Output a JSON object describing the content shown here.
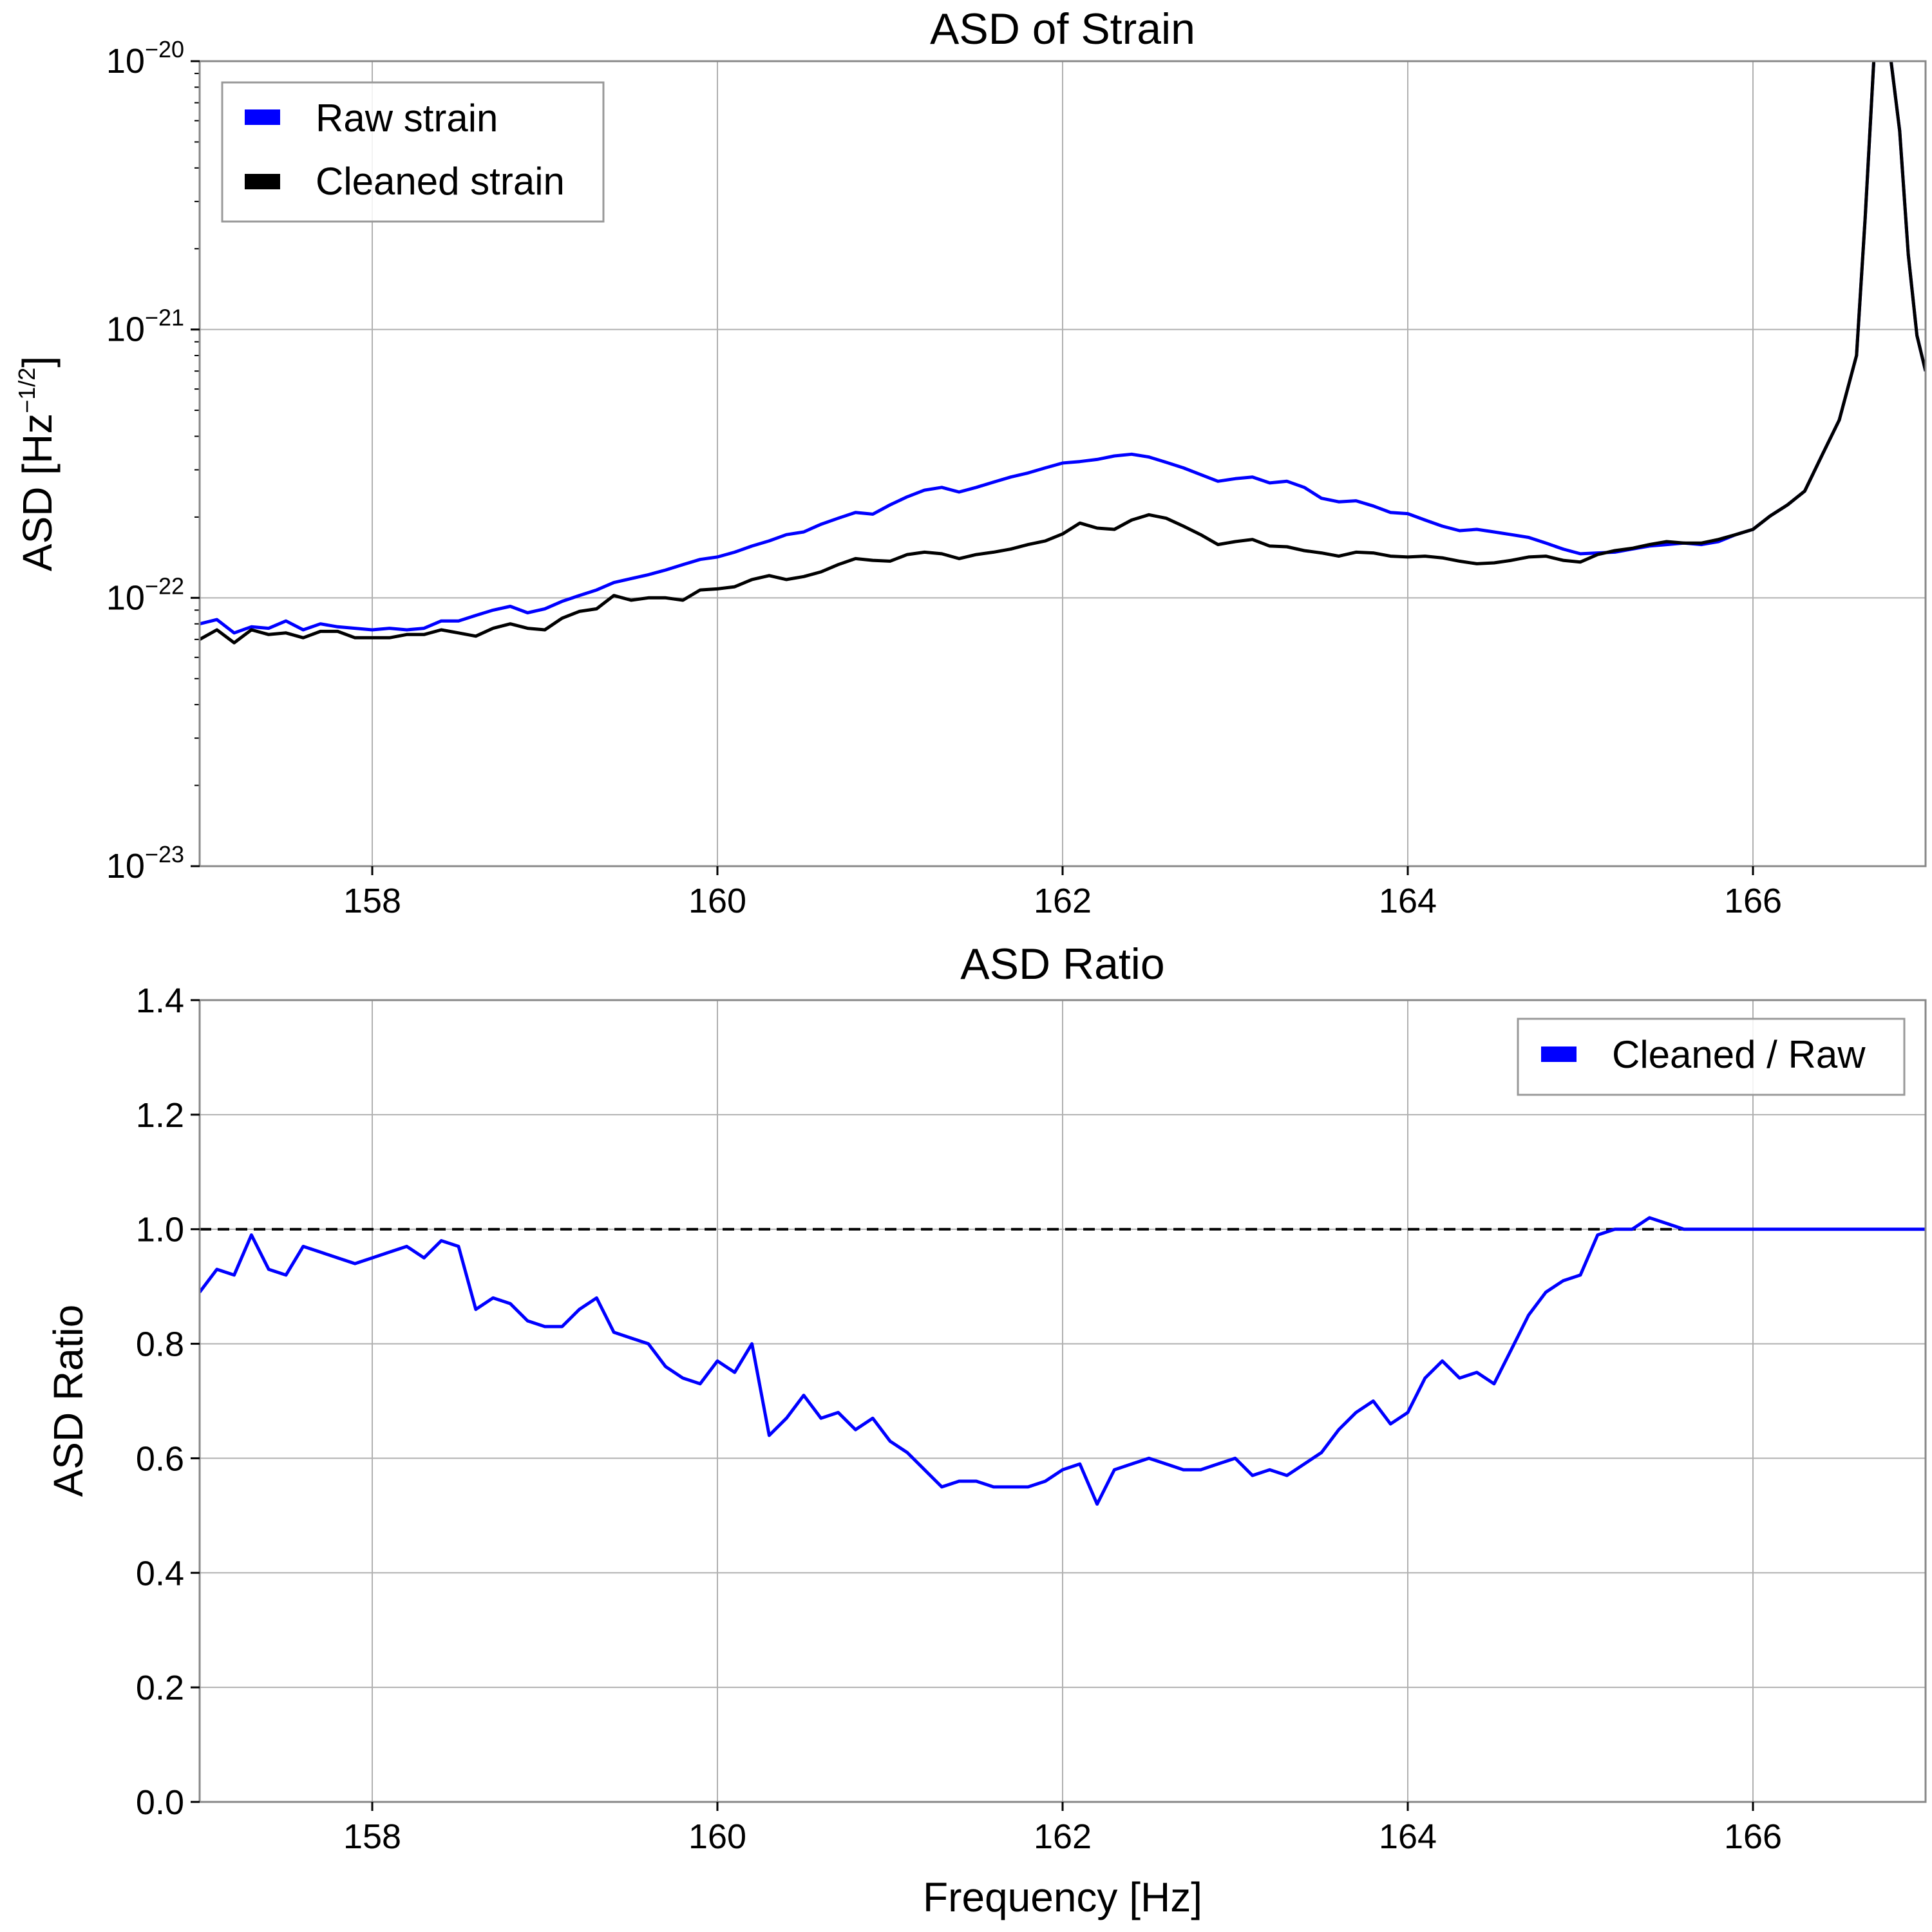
{
  "chart_data": [
    {
      "type": "line",
      "title": "ASD of Strain",
      "ylabel_base": "ASD [Hz",
      "ylabel_exp": "−1/2",
      "ylabel_close": "]",
      "yscale": "log",
      "xlim": [
        157,
        167
      ],
      "ylim": [
        1e-23,
        1e-20
      ],
      "grid": true,
      "legend_position": "upper left",
      "xtick_values": [
        158,
        160,
        162,
        164,
        166
      ],
      "xtick_labels": [
        "158",
        "160",
        "162",
        "164",
        "166"
      ],
      "ytick_values": [
        1e-23,
        1e-22,
        1e-21,
        1e-20
      ],
      "ytick_labels": [
        {
          "base": "10",
          "exp": "−23"
        },
        {
          "base": "10",
          "exp": "−22"
        },
        {
          "base": "10",
          "exp": "−21"
        },
        {
          "base": "10",
          "exp": "−20"
        }
      ],
      "series": [
        {
          "name": "Raw strain",
          "color": "#0000ff",
          "x": [
            157.0,
            157.1,
            157.2,
            157.3,
            157.4,
            157.5,
            157.6,
            157.7,
            157.8,
            157.9,
            158.0,
            158.1,
            158.2,
            158.3,
            158.4,
            158.5,
            158.6,
            158.7,
            158.8,
            158.9,
            159.0,
            159.1,
            159.2,
            159.3,
            159.4,
            159.5,
            159.6,
            159.7,
            159.8,
            159.9,
            160.0,
            160.1,
            160.2,
            160.3,
            160.4,
            160.5,
            160.6,
            160.7,
            160.8,
            160.9,
            161.0,
            161.1,
            161.2,
            161.3,
            161.4,
            161.5,
            161.6,
            161.7,
            161.8,
            161.9,
            162.0,
            162.1,
            162.2,
            162.3,
            162.4,
            162.5,
            162.6,
            162.7,
            162.8,
            162.9,
            163.0,
            163.1,
            163.2,
            163.3,
            163.4,
            163.5,
            163.6,
            163.7,
            163.8,
            163.9,
            164.0,
            164.1,
            164.2,
            164.3,
            164.4,
            164.5,
            164.6,
            164.7,
            164.8,
            164.9,
            165.0,
            165.1,
            165.2,
            165.3,
            165.4,
            165.5,
            165.6,
            165.7,
            165.8,
            165.9,
            166.0,
            166.1,
            166.2,
            166.3,
            166.4,
            166.5,
            166.6,
            166.65,
            166.7,
            166.75,
            166.8,
            166.85,
            166.9,
            166.95,
            167.0
          ],
          "y": [
            8e-23,
            8.3e-23,
            7.4e-23,
            7.8e-23,
            7.7e-23,
            8.2e-23,
            7.6e-23,
            8e-23,
            7.8e-23,
            7.7e-23,
            7.6e-23,
            7.7e-23,
            7.6e-23,
            7.7e-23,
            8.2e-23,
            8.2e-23,
            8.6e-23,
            9e-23,
            9.3e-23,
            8.8e-23,
            9.1e-23,
            9.7e-23,
            1.02e-22,
            1.07e-22,
            1.14e-22,
            1.18e-22,
            1.22e-22,
            1.27e-22,
            1.33e-22,
            1.39e-22,
            1.42e-22,
            1.48e-22,
            1.56e-22,
            1.63e-22,
            1.72e-22,
            1.76e-22,
            1.88e-22,
            1.98e-22,
            2.08e-22,
            2.05e-22,
            2.22e-22,
            2.38e-22,
            2.52e-22,
            2.58e-22,
            2.48e-22,
            2.58e-22,
            2.7e-22,
            2.82e-22,
            2.92e-22,
            3.05e-22,
            3.18e-22,
            3.22e-22,
            3.28e-22,
            3.38e-22,
            3.43e-22,
            3.35e-22,
            3.2e-22,
            3.05e-22,
            2.88e-22,
            2.72e-22,
            2.78e-22,
            2.82e-22,
            2.68e-22,
            2.72e-22,
            2.58e-22,
            2.35e-22,
            2.28e-22,
            2.3e-22,
            2.2e-22,
            2.08e-22,
            2.06e-22,
            1.95e-22,
            1.85e-22,
            1.78e-22,
            1.8e-22,
            1.76e-22,
            1.72e-22,
            1.68e-22,
            1.6e-22,
            1.52e-22,
            1.46e-22,
            1.47e-22,
            1.48e-22,
            1.52e-22,
            1.56e-22,
            1.58e-22,
            1.6e-22,
            1.58e-22,
            1.62e-22,
            1.72e-22,
            1.8e-22,
            2.02e-22,
            2.22e-22,
            2.5e-22,
            3.4e-22,
            4.6e-22,
            8e-22,
            2.6e-21,
            1e-20,
            1.3e-20,
            1e-20,
            5.5e-21,
            1.9e-21,
            9.5e-22,
            7e-22
          ]
        },
        {
          "name": "Cleaned strain",
          "color": "#000000",
          "x": [
            157.0,
            157.1,
            157.2,
            157.3,
            157.4,
            157.5,
            157.6,
            157.7,
            157.8,
            157.9,
            158.0,
            158.1,
            158.2,
            158.3,
            158.4,
            158.5,
            158.6,
            158.7,
            158.8,
            158.9,
            159.0,
            159.1,
            159.2,
            159.3,
            159.4,
            159.5,
            159.6,
            159.7,
            159.8,
            159.9,
            160.0,
            160.1,
            160.2,
            160.3,
            160.4,
            160.5,
            160.6,
            160.7,
            160.8,
            160.9,
            161.0,
            161.1,
            161.2,
            161.3,
            161.4,
            161.5,
            161.6,
            161.7,
            161.8,
            161.9,
            162.0,
            162.1,
            162.2,
            162.3,
            162.4,
            162.5,
            162.6,
            162.7,
            162.8,
            162.9,
            163.0,
            163.1,
            163.2,
            163.3,
            163.4,
            163.5,
            163.6,
            163.7,
            163.8,
            163.9,
            164.0,
            164.1,
            164.2,
            164.3,
            164.4,
            164.5,
            164.6,
            164.7,
            164.8,
            164.9,
            165.0,
            165.1,
            165.2,
            165.3,
            165.4,
            165.5,
            165.6,
            165.7,
            165.8,
            165.9,
            166.0,
            166.1,
            166.2,
            166.3,
            166.4,
            166.5,
            166.6,
            166.65,
            166.7,
            166.75,
            166.8,
            166.85,
            166.9,
            166.95,
            167.0
          ],
          "y": [
            7e-23,
            7.6e-23,
            6.8e-23,
            7.6e-23,
            7.3e-23,
            7.4e-23,
            7.1e-23,
            7.5e-23,
            7.5e-23,
            7.1e-23,
            7.1e-23,
            7.1e-23,
            7.3e-23,
            7.3e-23,
            7.6e-23,
            7.4e-23,
            7.2e-23,
            7.7e-23,
            8e-23,
            7.7e-23,
            7.6e-23,
            8.4e-23,
            8.9e-23,
            9.1e-23,
            1.02e-22,
            9.8e-23,
            1e-22,
            1e-22,
            9.8e-23,
            1.07e-22,
            1.08e-22,
            1.1e-22,
            1.17e-22,
            1.21e-22,
            1.17e-22,
            1.2e-22,
            1.25e-22,
            1.33e-22,
            1.4e-22,
            1.38e-22,
            1.37e-22,
            1.45e-22,
            1.48e-22,
            1.46e-22,
            1.4e-22,
            1.45e-22,
            1.48e-22,
            1.52e-22,
            1.58e-22,
            1.63e-22,
            1.73e-22,
            1.9e-22,
            1.82e-22,
            1.8e-22,
            1.95e-22,
            2.04e-22,
            1.98e-22,
            1.85e-22,
            1.72e-22,
            1.58e-22,
            1.62e-22,
            1.65e-22,
            1.56e-22,
            1.55e-22,
            1.5e-22,
            1.47e-22,
            1.43e-22,
            1.48e-22,
            1.47e-22,
            1.43e-22,
            1.42e-22,
            1.43e-22,
            1.41e-22,
            1.37e-22,
            1.34e-22,
            1.35e-22,
            1.38e-22,
            1.42e-22,
            1.43e-22,
            1.38e-22,
            1.36e-22,
            1.45e-22,
            1.5e-22,
            1.53e-22,
            1.58e-22,
            1.62e-22,
            1.6e-22,
            1.6e-22,
            1.65e-22,
            1.72e-22,
            1.8e-22,
            2.02e-22,
            2.22e-22,
            2.5e-22,
            3.4e-22,
            4.6e-22,
            8e-22,
            2.6e-21,
            1e-20,
            1.3e-20,
            1e-20,
            5.5e-21,
            1.9e-21,
            9.5e-22,
            7e-22
          ]
        }
      ]
    },
    {
      "type": "line",
      "title": "ASD Ratio",
      "xlabel": "Frequency [Hz]",
      "ylabel": "ASD Ratio",
      "xlim": [
        157,
        167
      ],
      "ylim": [
        0.0,
        1.4
      ],
      "grid": true,
      "legend_position": "upper right",
      "xtick_values": [
        158,
        160,
        162,
        164,
        166
      ],
      "xtick_labels": [
        "158",
        "160",
        "162",
        "164",
        "166"
      ],
      "ytick_values": [
        0.0,
        0.2,
        0.4,
        0.6,
        0.8,
        1.0,
        1.2,
        1.4
      ],
      "ytick_labels": [
        "0.0",
        "0.2",
        "0.4",
        "0.6",
        "0.8",
        "1.0",
        "1.2",
        "1.4"
      ],
      "reference_line": {
        "y": 1.0,
        "style": "dashed",
        "color": "#000000"
      },
      "series": [
        {
          "name": "Cleaned / Raw",
          "color": "#0000ff",
          "x": [
            157.0,
            157.1,
            157.2,
            157.3,
            157.4,
            157.5,
            157.6,
            157.7,
            157.8,
            157.9,
            158.0,
            158.1,
            158.2,
            158.3,
            158.4,
            158.5,
            158.6,
            158.7,
            158.8,
            158.9,
            159.0,
            159.1,
            159.2,
            159.3,
            159.4,
            159.5,
            159.6,
            159.7,
            159.8,
            159.9,
            160.0,
            160.1,
            160.2,
            160.3,
            160.4,
            160.5,
            160.6,
            160.7,
            160.8,
            160.9,
            161.0,
            161.1,
            161.2,
            161.3,
            161.4,
            161.5,
            161.6,
            161.7,
            161.8,
            161.9,
            162.0,
            162.1,
            162.2,
            162.3,
            162.4,
            162.5,
            162.6,
            162.7,
            162.8,
            162.9,
            163.0,
            163.1,
            163.2,
            163.3,
            163.4,
            163.5,
            163.6,
            163.7,
            163.8,
            163.9,
            164.0,
            164.1,
            164.2,
            164.3,
            164.4,
            164.5,
            164.6,
            164.7,
            164.8,
            164.9,
            165.0,
            165.1,
            165.2,
            165.3,
            165.4,
            165.5,
            165.6,
            165.7,
            165.8,
            165.9,
            166.0,
            166.2,
            166.4,
            166.6,
            166.8,
            167.0
          ],
          "y": [
            0.89,
            0.93,
            0.92,
            0.99,
            0.93,
            0.92,
            0.97,
            0.96,
            0.95,
            0.94,
            0.95,
            0.96,
            0.97,
            0.95,
            0.98,
            0.97,
            0.86,
            0.88,
            0.87,
            0.84,
            0.83,
            0.83,
            0.86,
            0.88,
            0.82,
            0.81,
            0.8,
            0.76,
            0.74,
            0.73,
            0.77,
            0.75,
            0.8,
            0.64,
            0.67,
            0.71,
            0.67,
            0.68,
            0.65,
            0.67,
            0.63,
            0.61,
            0.58,
            0.55,
            0.56,
            0.56,
            0.55,
            0.55,
            0.55,
            0.56,
            0.58,
            0.59,
            0.52,
            0.58,
            0.59,
            0.6,
            0.59,
            0.58,
            0.58,
            0.59,
            0.6,
            0.57,
            0.58,
            0.57,
            0.59,
            0.61,
            0.65,
            0.68,
            0.7,
            0.66,
            0.68,
            0.74,
            0.77,
            0.74,
            0.75,
            0.73,
            0.79,
            0.85,
            0.89,
            0.91,
            0.92,
            0.99,
            1.0,
            1.0,
            1.02,
            1.01,
            1.0,
            1.0,
            1.0,
            1.0,
            1.0,
            1.0,
            1.0,
            1.0,
            1.0,
            1.0
          ]
        }
      ]
    }
  ]
}
